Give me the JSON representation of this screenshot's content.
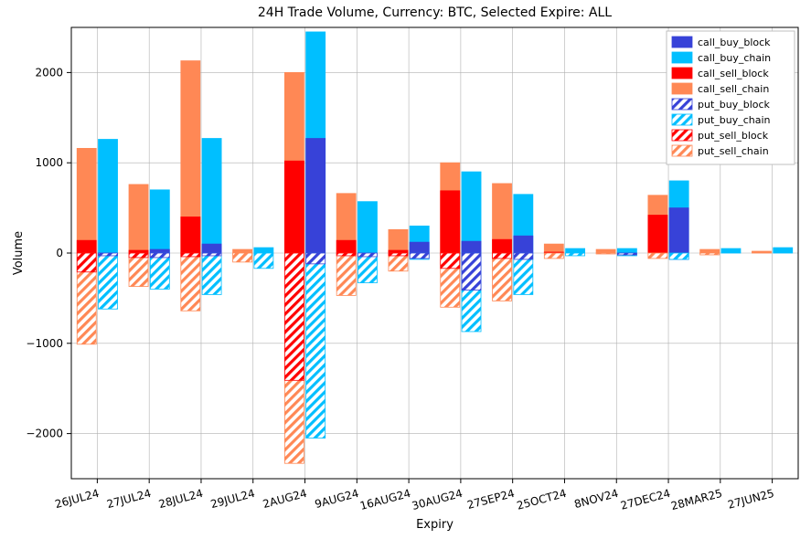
{
  "title": "24H Trade Volume, Currency: BTC, Selected Expire: ALL",
  "xlabel": "Expiry",
  "ylabel": "Volume",
  "ylim": [
    -2500,
    2500
  ],
  "ytick_step": 1000,
  "grid_color": "#b0b0b0",
  "background_color": "#ffffff",
  "categories": [
    "26JUL24",
    "27JUL24",
    "28JUL24",
    "29JUL24",
    "2AUG24",
    "9AUG24",
    "16AUG24",
    "30AUG24",
    "27SEP24",
    "25OCT24",
    "8NOV24",
    "27DEC24",
    "28MAR25",
    "27JUN25"
  ],
  "series": [
    {
      "key": "call_buy_block",
      "label": "call_buy_block",
      "color": "#3742d8",
      "hatch": false,
      "side": "pos",
      "bar": "right",
      "values": [
        0,
        40,
        100,
        0,
        1270,
        0,
        120,
        130,
        190,
        0,
        0,
        500,
        0,
        0
      ]
    },
    {
      "key": "call_buy_chain",
      "label": "call_buy_chain",
      "color": "#00bfff",
      "hatch": false,
      "side": "pos",
      "bar": "right",
      "values": [
        1260,
        700,
        1270,
        60,
        2450,
        570,
        300,
        900,
        650,
        50,
        50,
        800,
        50,
        60
      ]
    },
    {
      "key": "call_sell_block",
      "label": "call_sell_block",
      "color": "#ff0000",
      "hatch": false,
      "side": "pos",
      "bar": "left",
      "values": [
        140,
        30,
        400,
        0,
        1020,
        140,
        30,
        690,
        150,
        10,
        0,
        420,
        0,
        0
      ]
    },
    {
      "key": "call_sell_chain",
      "label": "call_sell_chain",
      "color": "#ff8855",
      "hatch": false,
      "side": "pos",
      "bar": "left",
      "values": [
        1160,
        760,
        2130,
        40,
        2000,
        660,
        260,
        1000,
        770,
        100,
        40,
        640,
        40,
        20
      ]
    },
    {
      "key": "put_buy_block",
      "label": "put_buy_block",
      "color": "#3742d8",
      "hatch": true,
      "side": "neg",
      "bar": "right",
      "values": [
        -30,
        -50,
        -30,
        0,
        -120,
        -40,
        -60,
        -410,
        -70,
        0,
        -20,
        -70,
        0,
        0
      ]
    },
    {
      "key": "put_buy_chain",
      "label": "put_buy_chain",
      "color": "#00bfff",
      "hatch": true,
      "side": "neg",
      "bar": "right",
      "values": [
        -620,
        -400,
        -460,
        -170,
        -2050,
        -330,
        -70,
        -870,
        -460,
        -30,
        -30,
        -70,
        0,
        0
      ]
    },
    {
      "key": "put_sell_block",
      "label": "put_sell_block",
      "color": "#ff0000",
      "hatch": true,
      "side": "neg",
      "bar": "left",
      "values": [
        -210,
        -50,
        -40,
        0,
        -1410,
        -30,
        -30,
        -170,
        -60,
        0,
        0,
        0,
        0,
        0
      ]
    },
    {
      "key": "put_sell_chain",
      "label": "put_sell_chain",
      "color": "#ff8855",
      "hatch": true,
      "side": "neg",
      "bar": "left",
      "values": [
        -1010,
        -370,
        -640,
        -100,
        -2330,
        -470,
        -200,
        -600,
        -530,
        -60,
        -10,
        -60,
        -20,
        0
      ]
    }
  ],
  "legend_order": [
    "call_buy_block",
    "call_buy_chain",
    "call_sell_block",
    "call_sell_chain",
    "put_buy_block",
    "put_buy_chain",
    "put_sell_block",
    "put_sell_chain"
  ],
  "bar_group_width": 0.78,
  "bar_gap": 0.04,
  "title_fontsize": 14,
  "label_fontsize": 13,
  "tick_fontsize": 12,
  "legend_fontsize": 11,
  "xtick_rotation": 15
}
